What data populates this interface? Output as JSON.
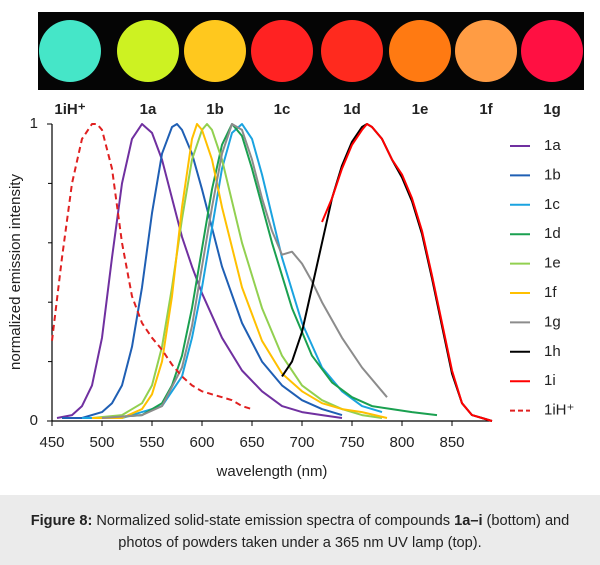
{
  "photo": {
    "samples": [
      {
        "label": "1iH⁺",
        "color": "#45e6c8"
      },
      {
        "label": "1a",
        "color": "#cdf222"
      },
      {
        "label": "1b",
        "color": "#ffc81e"
      },
      {
        "label": "1c",
        "color": "#ff2222"
      },
      {
        "label": "1d",
        "color": "#ff2a1e"
      },
      {
        "label": "1e",
        "color": "#ff7a12"
      },
      {
        "label": "1f",
        "color": "#ff9c44"
      },
      {
        "label": "1g",
        "color": "#ff1042"
      }
    ]
  },
  "chart_data": {
    "type": "line",
    "xlabel": "wavelength (nm)",
    "ylabel": "normalized emission intensity",
    "xlim": [
      450,
      890
    ],
    "ylim": [
      0,
      1
    ],
    "xticks": [
      450,
      500,
      550,
      600,
      650,
      700,
      750,
      800,
      850
    ],
    "yticks": [
      0,
      1
    ],
    "yminor_ticks": [
      0.2,
      0.4,
      0.6,
      0.8
    ],
    "legend": "right",
    "series": [
      {
        "name": "1a",
        "color": "#7030a0",
        "dash": false,
        "x": [
          455,
          470,
          480,
          490,
          500,
          510,
          520,
          530,
          540,
          550,
          560,
          570,
          580,
          590,
          600,
          620,
          640,
          660,
          680,
          700,
          720,
          740
        ],
        "values": [
          0.01,
          0.02,
          0.05,
          0.12,
          0.28,
          0.55,
          0.8,
          0.95,
          1,
          0.97,
          0.88,
          0.75,
          0.62,
          0.52,
          0.43,
          0.28,
          0.17,
          0.1,
          0.05,
          0.03,
          0.02,
          0.01
        ]
      },
      {
        "name": "1b",
        "color": "#1f5fb4",
        "dash": false,
        "x": [
          460,
          480,
          500,
          510,
          520,
          530,
          540,
          550,
          560,
          570,
          575,
          580,
          590,
          600,
          610,
          620,
          640,
          660,
          680,
          700,
          720,
          740
        ],
        "values": [
          0.01,
          0.01,
          0.03,
          0.06,
          0.12,
          0.25,
          0.45,
          0.7,
          0.9,
          0.99,
          1,
          0.98,
          0.9,
          0.78,
          0.65,
          0.52,
          0.33,
          0.2,
          0.12,
          0.07,
          0.04,
          0.02
        ]
      },
      {
        "name": "1c",
        "color": "#1aa3e0",
        "dash": false,
        "x": [
          480,
          520,
          560,
          580,
          590,
          600,
          610,
          620,
          630,
          640,
          650,
          660,
          680,
          700,
          720,
          740,
          760,
          780
        ],
        "values": [
          0.01,
          0.01,
          0.05,
          0.15,
          0.28,
          0.45,
          0.65,
          0.85,
          0.97,
          1,
          0.95,
          0.83,
          0.55,
          0.33,
          0.18,
          0.1,
          0.05,
          0.03
        ]
      },
      {
        "name": "1d",
        "color": "#1aa050",
        "dash": false,
        "x": [
          500,
          540,
          560,
          570,
          580,
          590,
          600,
          610,
          620,
          630,
          640,
          650,
          670,
          690,
          710,
          730,
          750,
          770,
          790,
          810,
          835
        ],
        "values": [
          0.01,
          0.02,
          0.06,
          0.12,
          0.22,
          0.38,
          0.58,
          0.78,
          0.93,
          1,
          0.96,
          0.85,
          0.6,
          0.38,
          0.22,
          0.13,
          0.08,
          0.05,
          0.04,
          0.03,
          0.02
        ]
      },
      {
        "name": "1e",
        "color": "#92d050",
        "dash": false,
        "x": [
          490,
          520,
          540,
          550,
          560,
          570,
          580,
          590,
          600,
          605,
          610,
          620,
          640,
          660,
          680,
          700,
          720,
          740,
          760,
          780
        ],
        "values": [
          0.01,
          0.02,
          0.06,
          0.12,
          0.25,
          0.45,
          0.68,
          0.88,
          0.98,
          1,
          0.98,
          0.88,
          0.6,
          0.38,
          0.22,
          0.12,
          0.07,
          0.04,
          0.02,
          0.01
        ]
      },
      {
        "name": "1f",
        "color": "#ffc000",
        "dash": false,
        "x": [
          490,
          520,
          540,
          550,
          560,
          570,
          580,
          590,
          595,
          600,
          610,
          620,
          640,
          660,
          680,
          700,
          720,
          740,
          760,
          785
        ],
        "values": [
          0.01,
          0.01,
          0.04,
          0.09,
          0.2,
          0.42,
          0.72,
          0.95,
          1,
          0.98,
          0.88,
          0.72,
          0.45,
          0.27,
          0.16,
          0.1,
          0.06,
          0.04,
          0.03,
          0.01
        ]
      },
      {
        "name": "1g",
        "color": "#8c8c8c",
        "dash": false,
        "x": [
          500,
          540,
          560,
          580,
          590,
          600,
          610,
          620,
          630,
          640,
          650,
          660,
          670,
          680,
          690,
          700,
          710,
          720,
          740,
          760,
          785
        ],
        "values": [
          0.01,
          0.02,
          0.05,
          0.18,
          0.32,
          0.52,
          0.72,
          0.9,
          1,
          0.98,
          0.88,
          0.75,
          0.64,
          0.56,
          0.57,
          0.53,
          0.47,
          0.4,
          0.28,
          0.18,
          0.08
        ]
      },
      {
        "name": "1h",
        "color": "#000000",
        "dash": false,
        "x": [
          680,
          690,
          700,
          710,
          720,
          730,
          740,
          750,
          760,
          765,
          770,
          780,
          790,
          800,
          810,
          820,
          830,
          840,
          850,
          860,
          870,
          880,
          890
        ],
        "values": [
          0.15,
          0.2,
          0.3,
          0.45,
          0.6,
          0.75,
          0.86,
          0.94,
          0.99,
          1,
          0.99,
          0.95,
          0.88,
          0.82,
          0.74,
          0.63,
          0.48,
          0.32,
          0.16,
          0.06,
          0.02,
          0.01,
          0
        ]
      },
      {
        "name": "1i",
        "color": "#ff0000",
        "dash": false,
        "x": [
          720,
          730,
          740,
          750,
          760,
          765,
          770,
          780,
          790,
          800,
          810,
          820,
          830,
          840,
          850,
          860,
          870,
          880,
          890
        ],
        "values": [
          0.67,
          0.75,
          0.85,
          0.93,
          0.98,
          1,
          0.99,
          0.95,
          0.88,
          0.83,
          0.75,
          0.64,
          0.49,
          0.33,
          0.17,
          0.06,
          0.02,
          0.01,
          0
        ]
      },
      {
        "name": "1iH⁺",
        "color": "#e02020",
        "dash": true,
        "x": [
          450,
          460,
          470,
          480,
          490,
          495,
          500,
          510,
          520,
          530,
          540,
          550,
          560,
          570,
          580,
          590,
          600,
          610,
          620,
          630,
          640,
          650
        ],
        "values": [
          0.27,
          0.55,
          0.8,
          0.95,
          1,
          1,
          0.98,
          0.85,
          0.6,
          0.42,
          0.33,
          0.28,
          0.24,
          0.19,
          0.15,
          0.12,
          0.1,
          0.09,
          0.08,
          0.07,
          0.05,
          0.04
        ]
      }
    ]
  },
  "caption": {
    "label": "Figure 8:",
    "text1": " Normalized solid-state emission spectra of compounds ",
    "bold": "1a–i",
    "text2": " (bottom) and photos of powders taken under a 365 nm UV lamp (top)."
  }
}
